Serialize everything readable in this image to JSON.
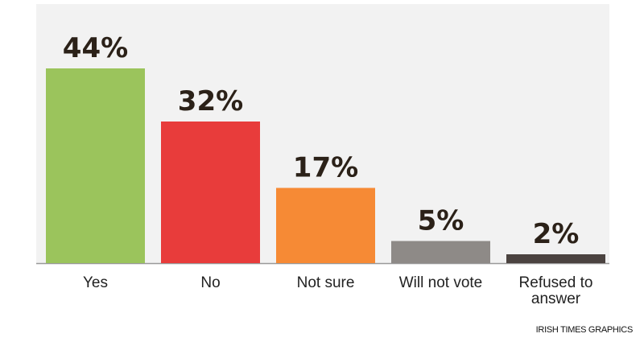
{
  "chart_data": {
    "type": "bar",
    "categories": [
      "Yes",
      "No",
      "Not sure",
      "Will not vote",
      "Refused to answer"
    ],
    "values": [
      44,
      32,
      17,
      5,
      2
    ],
    "value_labels": [
      "44%",
      "32%",
      "17%",
      "5%",
      "2%"
    ],
    "colors": [
      "#9bc45c",
      "#e83c3b",
      "#f68a35",
      "#8e8a87",
      "#4b4340"
    ],
    "source": "IRISH TIMES GRAPHICS"
  }
}
